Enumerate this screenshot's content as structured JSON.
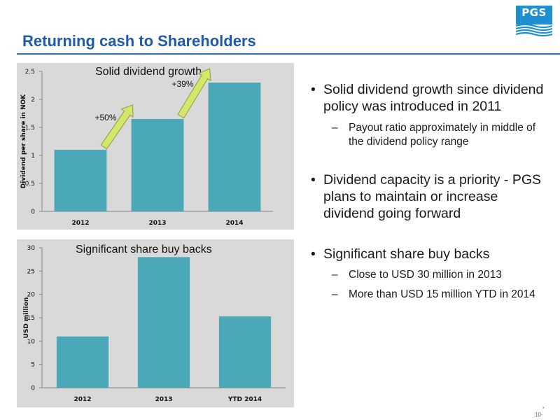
{
  "header": {
    "title": "Returning cash to Shareholders",
    "logo_text": "PGS",
    "brand_color": "#1f5aa6",
    "logo_color": "#1e8fd0"
  },
  "chart_data": [
    {
      "type": "bar",
      "title": "Solid dividend growth",
      "ylabel": "Dividend per share in NOK",
      "categories": [
        "2012",
        "2013",
        "2014"
      ],
      "values": [
        1.1,
        1.65,
        2.3
      ],
      "ylim": [
        0,
        2.5
      ],
      "yticks": [
        "0",
        "0.5",
        "1",
        "1.5",
        "2",
        "2.5"
      ],
      "annotations": [
        "+50%",
        "+39%"
      ],
      "bar_color": "#4aa8b8",
      "arrow_color": "#d6e56b",
      "background": "#d9d9d9",
      "grid": false
    },
    {
      "type": "bar",
      "title": "Significant share buy backs",
      "ylabel": "USD million",
      "categories": [
        "2012",
        "2013",
        "YTD 2014"
      ],
      "values": [
        11,
        28,
        15.3
      ],
      "ylim": [
        0,
        30
      ],
      "yticks": [
        "0",
        "5",
        "10",
        "15",
        "20",
        "25",
        "30"
      ],
      "bar_color": "#4aa8b8",
      "background": "#d9d9d9",
      "grid": false
    }
  ],
  "bullets": [
    {
      "text": "Solid dividend growth since dividend policy was introduced in 2011",
      "sub": [
        "Payout ratio approximately in middle of the dividend policy range"
      ]
    },
    {
      "text": "Dividend capacity is a priority - PGS plans to maintain or increase dividend going forward",
      "sub": []
    },
    {
      "text": "Significant share buy backs",
      "sub": [
        "Close to USD 30 million in 2013",
        "More than USD 15 million YTD in 2014"
      ]
    }
  ],
  "footer": {
    "page_number": "10-",
    "page_mark": "•"
  }
}
